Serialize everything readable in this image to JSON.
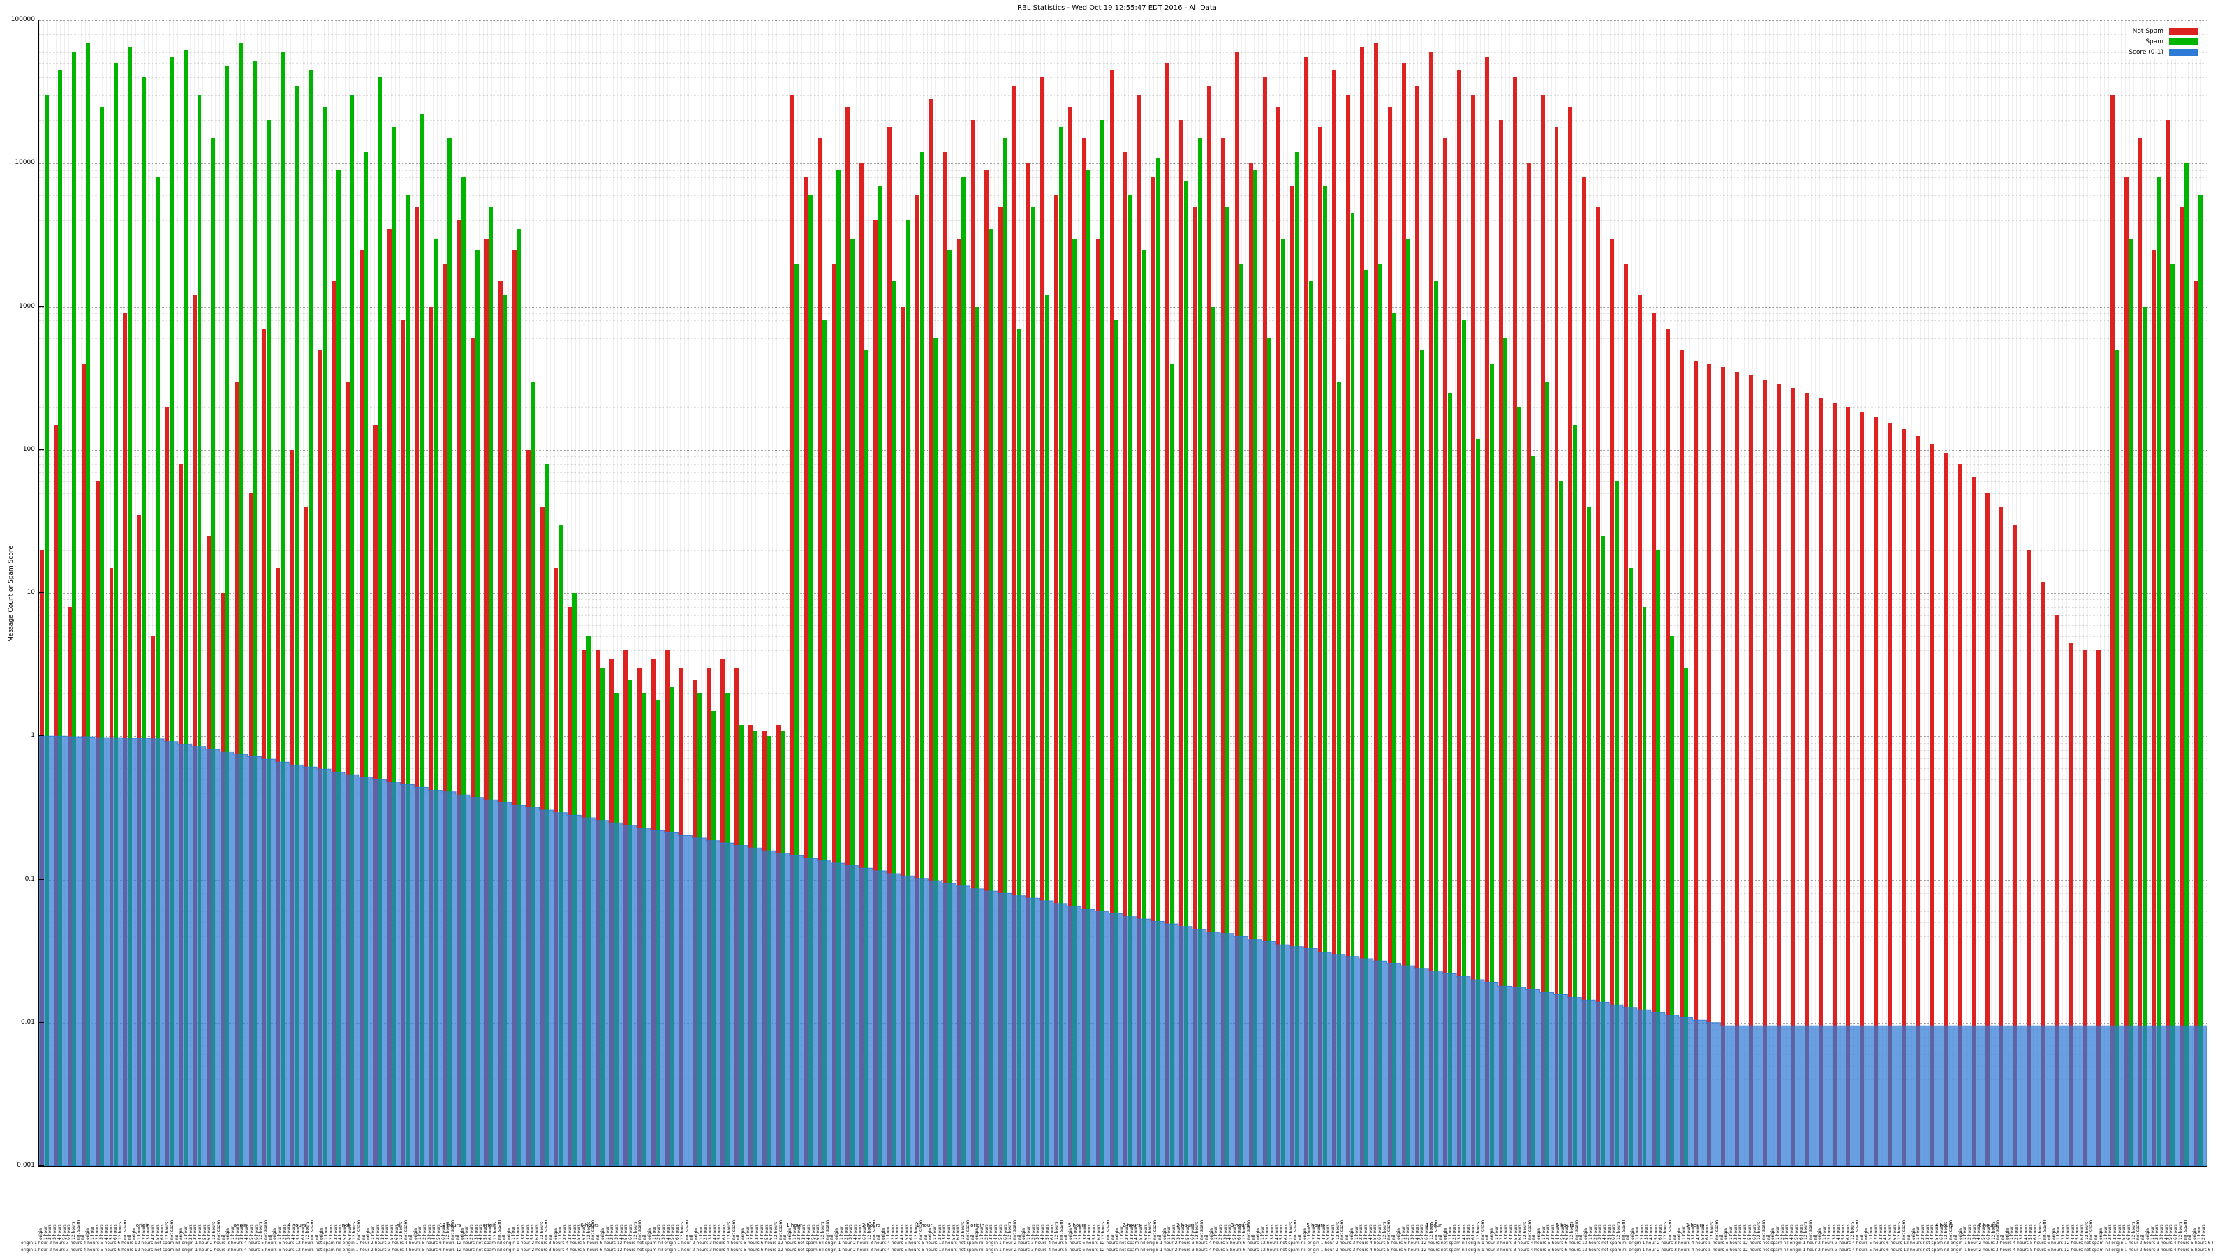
{
  "title": "RBL Statistics - Wed Oct 19 12:55:47 EDT 2016 - All Data",
  "chart_data": {
    "type": "bar",
    "title": "RBL Statistics - Wed Oct 19 12:55:47 EDT 2016 - All Data",
    "xlabel": "",
    "ylabel": "Message Count or Spam Score",
    "yscale": "log",
    "ylim": [
      0.001,
      100000
    ],
    "grid": true,
    "legend_position": "top-right",
    "ytick_labels": [
      "100000",
      "10000",
      "1000",
      "100",
      "10",
      "1",
      "0.1",
      "0.01",
      "0.001"
    ],
    "xtick_fragments": [
      "origin",
      "1 hour",
      "2 hours",
      "3 hours",
      "4 hours",
      "5 hours",
      "6 hours",
      "12 hours",
      "not spam",
      "nil"
    ],
    "x_axis_note": "hundreds of rotated RBL source labels, illegible at capture scale",
    "series": [
      {
        "name": "Not Spam",
        "color": "#dd2222",
        "values": [
          20,
          150,
          8,
          400,
          60,
          15,
          900,
          35,
          5,
          200,
          80,
          1200,
          25,
          10,
          300,
          50,
          700,
          15,
          100,
          40,
          500,
          1500,
          300,
          2500,
          150,
          3500,
          800,
          5000,
          1000,
          2000,
          4000,
          600,
          3000,
          1500,
          2500,
          100,
          40,
          15,
          8,
          4,
          4,
          3.5,
          4,
          3,
          3.5,
          4,
          3,
          2.5,
          3,
          3.5,
          3,
          1.2,
          1.1,
          1.2,
          30000,
          8000,
          15000,
          2000,
          25000,
          10000,
          4000,
          18000,
          1000,
          6000,
          28000,
          12000,
          3000,
          20000,
          9000,
          5000,
          35000,
          10000,
          40000,
          6000,
          25000,
          15000,
          3000,
          45000,
          12000,
          30000,
          8000,
          50000,
          20000,
          5000,
          35000,
          15000,
          60000,
          10000,
          40000,
          25000,
          7000,
          55000,
          18000,
          45000,
          30000,
          65000,
          70000,
          25000,
          50000,
          35000,
          60000,
          15000,
          45000,
          30000,
          55000,
          20000,
          40000,
          10000,
          30000,
          18000,
          25000,
          8000,
          5000,
          3000,
          2000,
          1200,
          900,
          700,
          500,
          420,
          400,
          380,
          350,
          330,
          310,
          290,
          270,
          250,
          230,
          215,
          200,
          185,
          170,
          155,
          140,
          125,
          110,
          95,
          80,
          65,
          50,
          40,
          30,
          20,
          12,
          7,
          4.5,
          4,
          4,
          30000,
          8000,
          15000,
          2500,
          20000,
          5000,
          1500
        ]
      },
      {
        "name": "Spam",
        "color": "#00b400",
        "values": [
          30000,
          45000,
          60000,
          70000,
          25000,
          50000,
          65000,
          40000,
          8000,
          55000,
          62000,
          30000,
          15000,
          48000,
          70000,
          52000,
          20000,
          60000,
          35000,
          45000,
          25000,
          9000,
          30000,
          12000,
          40000,
          18000,
          6000,
          22000,
          3000,
          15000,
          8000,
          2500,
          5000,
          1200,
          3500,
          300,
          80,
          30,
          10,
          5,
          3,
          2,
          2.5,
          2,
          1.8,
          2.2,
          0,
          2,
          1.5,
          2,
          1.2,
          1.1,
          1.0,
          1.1,
          2000,
          6000,
          800,
          9000,
          3000,
          500,
          7000,
          1500,
          4000,
          12000,
          600,
          2500,
          8000,
          1000,
          3500,
          15000,
          700,
          5000,
          1200,
          18000,
          3000,
          9000,
          20000,
          800,
          6000,
          2500,
          11000,
          400,
          7500,
          15000,
          1000,
          5000,
          2000,
          9000,
          600,
          3000,
          12000,
          1500,
          7000,
          300,
          4500,
          1800,
          2000,
          900,
          3000,
          500,
          1500,
          250,
          800,
          120,
          400,
          600,
          200,
          90,
          300,
          60,
          150,
          40,
          25,
          60,
          15,
          8,
          20,
          5,
          3,
          0,
          0,
          0,
          0,
          0,
          0,
          0,
          0,
          0,
          0,
          0,
          0,
          0,
          0,
          0,
          0,
          0,
          0,
          0,
          0,
          0,
          0,
          0,
          0,
          0,
          0,
          0,
          0,
          0,
          0,
          500,
          3000,
          1000,
          8000,
          2000,
          10000,
          6000
        ]
      },
      {
        "name": "Score (0-1)",
        "color": "#2e7bd6",
        "values": [
          1.0,
          1.0,
          0.99,
          0.99,
          0.98,
          0.98,
          0.97,
          0.97,
          0.96,
          0.92,
          0.88,
          0.85,
          0.81,
          0.78,
          0.75,
          0.72,
          0.69,
          0.66,
          0.63,
          0.61,
          0.59,
          0.56,
          0.54,
          0.52,
          0.5,
          0.48,
          0.46,
          0.44,
          0.42,
          0.41,
          0.39,
          0.375,
          0.36,
          0.345,
          0.33,
          0.32,
          0.305,
          0.293,
          0.281,
          0.27,
          0.259,
          0.249,
          0.239,
          0.229,
          0.22,
          0.212,
          0.203,
          0.195,
          0.187,
          0.18,
          0.173,
          0.166,
          0.159,
          0.153,
          0.147,
          0.141,
          0.135,
          0.13,
          0.125,
          0.12,
          0.115,
          0.11,
          0.106,
          0.102,
          0.098,
          0.094,
          0.09,
          0.086,
          0.083,
          0.08,
          0.077,
          0.074,
          0.071,
          0.068,
          0.065,
          0.062,
          0.06,
          0.058,
          0.055,
          0.053,
          0.051,
          0.049,
          0.047,
          0.045,
          0.043,
          0.042,
          0.04,
          0.038,
          0.037,
          0.035,
          0.034,
          0.033,
          0.031,
          0.03,
          0.029,
          0.028,
          0.027,
          0.026,
          0.025,
          0.024,
          0.023,
          0.022,
          0.021,
          0.02,
          0.019,
          0.018,
          0.0177,
          0.017,
          0.0163,
          0.0157,
          0.015,
          0.0144,
          0.0139,
          0.0133,
          0.0128,
          0.0123,
          0.0118,
          0.0113,
          0.0109,
          0.0104,
          0.01,
          0.0095,
          0.0095,
          0.0095,
          0.0095,
          0.0095,
          0.0095,
          0.0095,
          0.0095,
          0.0095,
          0.0095,
          0.0095,
          0.0095,
          0.0095,
          0.0095,
          0.0095,
          0.0095,
          0.0095,
          0.0095,
          0.0095,
          0.0095,
          0.0095,
          0.0095,
          0.0095,
          0.0095,
          0.0095,
          0.0095,
          0.0095,
          0.0095,
          0.0095,
          0.0095,
          0.0095,
          0.0095,
          0.0095,
          0.0095,
          0.0095
        ]
      }
    ],
    "callouts": [
      {
        "x": 0.045,
        "text": "origin"
      },
      {
        "x": 0.09,
        "text": "origin"
      },
      {
        "x": 0.115,
        "text": "4 hours"
      },
      {
        "x": 0.14,
        "text": "not"
      },
      {
        "x": 0.165,
        "text": "nil"
      },
      {
        "x": 0.185,
        "text": "12 hours"
      },
      {
        "x": 0.205,
        "text": "origin"
      },
      {
        "x": 0.25,
        "text": "6 hours"
      },
      {
        "x": 0.345,
        "text": "1 hour"
      },
      {
        "x": 0.38,
        "text": "2 hours"
      },
      {
        "x": 0.405,
        "text": "1 hour"
      },
      {
        "x": 0.43,
        "text": "origin"
      },
      {
        "x": 0.475,
        "text": "5 hours"
      },
      {
        "x": 0.5,
        "text": "2 hours"
      },
      {
        "x": 0.525,
        "text": "2 hours"
      },
      {
        "x": 0.55,
        "text": "3 hours"
      },
      {
        "x": 0.585,
        "text": "5 hours"
      },
      {
        "x": 0.64,
        "text": "1 hour"
      },
      {
        "x": 0.7,
        "text": "5 hours"
      },
      {
        "x": 0.76,
        "text": "3 hours"
      },
      {
        "x": 0.875,
        "text": "4 hours"
      },
      {
        "x": 0.895,
        "text": "6 hours"
      }
    ]
  }
}
